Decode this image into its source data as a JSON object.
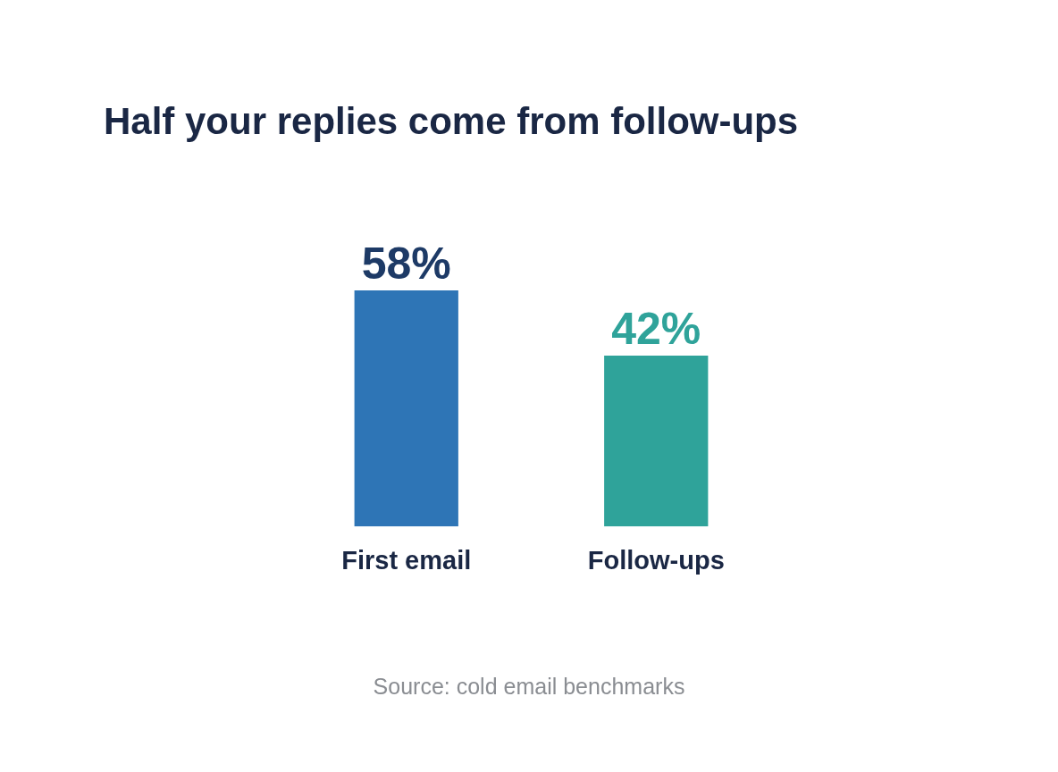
{
  "chart_data": {
    "type": "bar",
    "title": "Half your replies come from follow-ups",
    "categories": [
      "First email",
      "Follow-ups"
    ],
    "values": [
      58,
      42
    ],
    "colors": [
      "#2e75b6",
      "#2fa39a"
    ],
    "value_labels": [
      "58%",
      "42%"
    ],
    "annotations": [
      "Source: cold email benchmarks"
    ]
  }
}
